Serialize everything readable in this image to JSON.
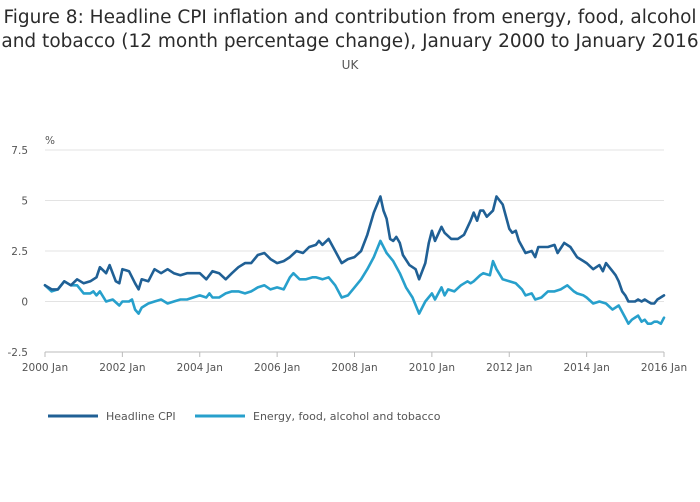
{
  "chart_data": {
    "type": "line",
    "title_line1": "Figure 8: Headline CPI inflation and contribution from energy, food, alcohol",
    "title_line2": "and tobacco (12 month percentage change), January 2000 to January 2016",
    "subtitle": "UK",
    "ylabel": "%",
    "ylim": [
      -2.5,
      7.5
    ],
    "yticks": [
      -2.5,
      0,
      2.5,
      5,
      7.5
    ],
    "ytick_labels": [
      "-2.5",
      "0",
      "2.5",
      "5",
      "7.5"
    ],
    "xlim": [
      2000.0,
      2016.0
    ],
    "xticks": [
      2000,
      2002,
      2004,
      2006,
      2008,
      2010,
      2012,
      2014,
      2016
    ],
    "xtick_labels": [
      "2000 Jan",
      "2002 Jan",
      "2004 Jan",
      "2006 Jan",
      "2008 Jan",
      "2010 Jan",
      "2012 Jan",
      "2014 Jan",
      "2016 Jan"
    ],
    "grid": true,
    "legend_position": "bottom-left",
    "colors": {
      "headline": "#206095",
      "energy": "#27a0cc"
    },
    "series": [
      {
        "name": "Headline CPI",
        "points": [
          [
            2000.0,
            0.8
          ],
          [
            2000.17,
            0.6
          ],
          [
            2000.33,
            0.6
          ],
          [
            2000.5,
            1.0
          ],
          [
            2000.67,
            0.8
          ],
          [
            2000.83,
            1.1
          ],
          [
            2001.0,
            0.9
          ],
          [
            2001.17,
            1.0
          ],
          [
            2001.33,
            1.2
          ],
          [
            2001.42,
            1.7
          ],
          [
            2001.58,
            1.4
          ],
          [
            2001.67,
            1.8
          ],
          [
            2001.83,
            1.0
          ],
          [
            2001.92,
            0.9
          ],
          [
            2002.0,
            1.6
          ],
          [
            2002.17,
            1.5
          ],
          [
            2002.33,
            0.9
          ],
          [
            2002.42,
            0.6
          ],
          [
            2002.5,
            1.1
          ],
          [
            2002.67,
            1.0
          ],
          [
            2002.83,
            1.6
          ],
          [
            2003.0,
            1.4
          ],
          [
            2003.17,
            1.6
          ],
          [
            2003.33,
            1.4
          ],
          [
            2003.5,
            1.3
          ],
          [
            2003.67,
            1.4
          ],
          [
            2003.83,
            1.4
          ],
          [
            2004.0,
            1.4
          ],
          [
            2004.17,
            1.1
          ],
          [
            2004.33,
            1.5
          ],
          [
            2004.5,
            1.4
          ],
          [
            2004.67,
            1.1
          ],
          [
            2004.83,
            1.4
          ],
          [
            2005.0,
            1.7
          ],
          [
            2005.17,
            1.9
          ],
          [
            2005.33,
            1.9
          ],
          [
            2005.5,
            2.3
          ],
          [
            2005.67,
            2.4
          ],
          [
            2005.83,
            2.1
          ],
          [
            2006.0,
            1.9
          ],
          [
            2006.17,
            2.0
          ],
          [
            2006.33,
            2.2
          ],
          [
            2006.5,
            2.5
          ],
          [
            2006.67,
            2.4
          ],
          [
            2006.83,
            2.7
          ],
          [
            2007.0,
            2.8
          ],
          [
            2007.08,
            3.0
          ],
          [
            2007.17,
            2.8
          ],
          [
            2007.33,
            3.1
          ],
          [
            2007.5,
            2.5
          ],
          [
            2007.67,
            1.9
          ],
          [
            2007.83,
            2.1
          ],
          [
            2008.0,
            2.2
          ],
          [
            2008.17,
            2.5
          ],
          [
            2008.33,
            3.3
          ],
          [
            2008.5,
            4.4
          ],
          [
            2008.67,
            5.2
          ],
          [
            2008.75,
            4.5
          ],
          [
            2008.83,
            4.1
          ],
          [
            2008.92,
            3.1
          ],
          [
            2009.0,
            3.0
          ],
          [
            2009.08,
            3.2
          ],
          [
            2009.17,
            2.9
          ],
          [
            2009.25,
            2.3
          ],
          [
            2009.42,
            1.8
          ],
          [
            2009.58,
            1.6
          ],
          [
            2009.67,
            1.1
          ],
          [
            2009.83,
            1.9
          ],
          [
            2009.92,
            2.9
          ],
          [
            2010.0,
            3.5
          ],
          [
            2010.08,
            3.0
          ],
          [
            2010.25,
            3.7
          ],
          [
            2010.33,
            3.4
          ],
          [
            2010.5,
            3.1
          ],
          [
            2010.67,
            3.1
          ],
          [
            2010.83,
            3.3
          ],
          [
            2011.0,
            4.0
          ],
          [
            2011.08,
            4.4
          ],
          [
            2011.17,
            4.0
          ],
          [
            2011.25,
            4.5
          ],
          [
            2011.33,
            4.5
          ],
          [
            2011.42,
            4.2
          ],
          [
            2011.58,
            4.5
          ],
          [
            2011.67,
            5.2
          ],
          [
            2011.83,
            4.8
          ],
          [
            2012.0,
            3.6
          ],
          [
            2012.08,
            3.4
          ],
          [
            2012.17,
            3.5
          ],
          [
            2012.25,
            3.0
          ],
          [
            2012.42,
            2.4
          ],
          [
            2012.58,
            2.5
          ],
          [
            2012.67,
            2.2
          ],
          [
            2012.75,
            2.7
          ],
          [
            2013.0,
            2.7
          ],
          [
            2013.17,
            2.8
          ],
          [
            2013.25,
            2.4
          ],
          [
            2013.42,
            2.9
          ],
          [
            2013.58,
            2.7
          ],
          [
            2013.75,
            2.2
          ],
          [
            2013.92,
            2.0
          ],
          [
            2014.0,
            1.9
          ],
          [
            2014.17,
            1.6
          ],
          [
            2014.33,
            1.8
          ],
          [
            2014.42,
            1.5
          ],
          [
            2014.5,
            1.9
          ],
          [
            2014.67,
            1.5
          ],
          [
            2014.75,
            1.3
          ],
          [
            2014.83,
            1.0
          ],
          [
            2014.92,
            0.5
          ],
          [
            2015.0,
            0.3
          ],
          [
            2015.08,
            0.0
          ],
          [
            2015.25,
            0.0
          ],
          [
            2015.33,
            0.1
          ],
          [
            2015.42,
            0.0
          ],
          [
            2015.5,
            0.1
          ],
          [
            2015.58,
            0.0
          ],
          [
            2015.67,
            -0.1
          ],
          [
            2015.75,
            -0.1
          ],
          [
            2015.83,
            0.1
          ],
          [
            2016.0,
            0.3
          ]
        ]
      },
      {
        "name": "Energy, food, alcohol and tobacco",
        "points": [
          [
            2000.0,
            0.8
          ],
          [
            2000.17,
            0.5
          ],
          [
            2000.33,
            0.6
          ],
          [
            2000.5,
            1.0
          ],
          [
            2000.67,
            0.8
          ],
          [
            2000.83,
            0.8
          ],
          [
            2001.0,
            0.4
          ],
          [
            2001.17,
            0.4
          ],
          [
            2001.25,
            0.5
          ],
          [
            2001.33,
            0.3
          ],
          [
            2001.42,
            0.5
          ],
          [
            2001.58,
            0.0
          ],
          [
            2001.75,
            0.1
          ],
          [
            2001.92,
            -0.2
          ],
          [
            2002.0,
            0.0
          ],
          [
            2002.17,
            0.0
          ],
          [
            2002.25,
            0.1
          ],
          [
            2002.33,
            -0.4
          ],
          [
            2002.42,
            -0.6
          ],
          [
            2002.5,
            -0.3
          ],
          [
            2002.67,
            -0.1
          ],
          [
            2002.83,
            0.0
          ],
          [
            2003.0,
            0.1
          ],
          [
            2003.17,
            -0.1
          ],
          [
            2003.33,
            0.0
          ],
          [
            2003.5,
            0.1
          ],
          [
            2003.67,
            0.1
          ],
          [
            2003.83,
            0.2
          ],
          [
            2004.0,
            0.3
          ],
          [
            2004.17,
            0.2
          ],
          [
            2004.25,
            0.4
          ],
          [
            2004.33,
            0.2
          ],
          [
            2004.5,
            0.2
          ],
          [
            2004.67,
            0.4
          ],
          [
            2004.83,
            0.5
          ],
          [
            2005.0,
            0.5
          ],
          [
            2005.17,
            0.4
          ],
          [
            2005.33,
            0.5
          ],
          [
            2005.5,
            0.7
          ],
          [
            2005.67,
            0.8
          ],
          [
            2005.83,
            0.6
          ],
          [
            2006.0,
            0.7
          ],
          [
            2006.17,
            0.6
          ],
          [
            2006.33,
            1.2
          ],
          [
            2006.42,
            1.4
          ],
          [
            2006.58,
            1.1
          ],
          [
            2006.75,
            1.1
          ],
          [
            2006.92,
            1.2
          ],
          [
            2007.0,
            1.2
          ],
          [
            2007.17,
            1.1
          ],
          [
            2007.33,
            1.2
          ],
          [
            2007.5,
            0.8
          ],
          [
            2007.67,
            0.2
          ],
          [
            2007.83,
            0.3
          ],
          [
            2008.0,
            0.7
          ],
          [
            2008.17,
            1.1
          ],
          [
            2008.33,
            1.6
          ],
          [
            2008.5,
            2.2
          ],
          [
            2008.67,
            3.0
          ],
          [
            2008.83,
            2.4
          ],
          [
            2009.0,
            2.0
          ],
          [
            2009.17,
            1.4
          ],
          [
            2009.33,
            0.7
          ],
          [
            2009.5,
            0.2
          ],
          [
            2009.67,
            -0.6
          ],
          [
            2009.83,
            0.0
          ],
          [
            2010.0,
            0.4
          ],
          [
            2010.08,
            0.1
          ],
          [
            2010.25,
            0.7
          ],
          [
            2010.33,
            0.3
          ],
          [
            2010.42,
            0.6
          ],
          [
            2010.58,
            0.5
          ],
          [
            2010.75,
            0.8
          ],
          [
            2010.92,
            1.0
          ],
          [
            2011.0,
            0.9
          ],
          [
            2011.08,
            1.0
          ],
          [
            2011.25,
            1.3
          ],
          [
            2011.33,
            1.4
          ],
          [
            2011.5,
            1.3
          ],
          [
            2011.58,
            2.0
          ],
          [
            2011.67,
            1.6
          ],
          [
            2011.83,
            1.1
          ],
          [
            2012.0,
            1.0
          ],
          [
            2012.17,
            0.9
          ],
          [
            2012.33,
            0.6
          ],
          [
            2012.42,
            0.3
          ],
          [
            2012.58,
            0.4
          ],
          [
            2012.67,
            0.1
          ],
          [
            2012.83,
            0.2
          ],
          [
            2013.0,
            0.5
          ],
          [
            2013.17,
            0.5
          ],
          [
            2013.33,
            0.6
          ],
          [
            2013.5,
            0.8
          ],
          [
            2013.67,
            0.5
          ],
          [
            2013.75,
            0.4
          ],
          [
            2013.92,
            0.3
          ],
          [
            2014.0,
            0.2
          ],
          [
            2014.17,
            -0.1
          ],
          [
            2014.33,
            0.0
          ],
          [
            2014.5,
            -0.1
          ],
          [
            2014.67,
            -0.4
          ],
          [
            2014.83,
            -0.2
          ],
          [
            2015.0,
            -0.8
          ],
          [
            2015.08,
            -1.1
          ],
          [
            2015.17,
            -0.9
          ],
          [
            2015.33,
            -0.7
          ],
          [
            2015.42,
            -1.0
          ],
          [
            2015.5,
            -0.9
          ],
          [
            2015.58,
            -1.1
          ],
          [
            2015.67,
            -1.1
          ],
          [
            2015.75,
            -1.0
          ],
          [
            2015.83,
            -1.0
          ],
          [
            2015.92,
            -1.1
          ],
          [
            2016.0,
            -0.8
          ]
        ]
      }
    ]
  }
}
